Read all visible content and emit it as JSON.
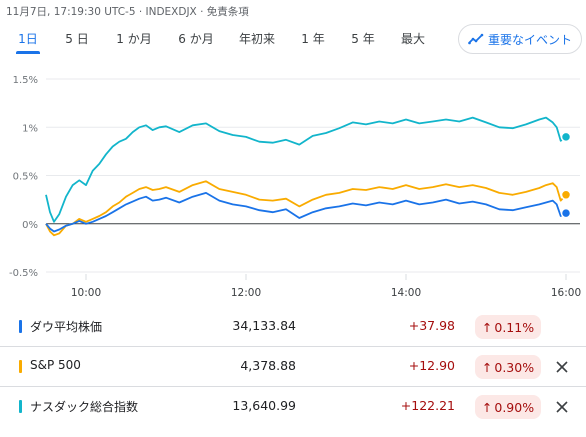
{
  "header": {
    "meta": "11月7日, 17:19:30 UTC-5 · INDEXDJX · 免責条項"
  },
  "tabs": [
    {
      "label": "1日",
      "active": true
    },
    {
      "label": "5 日",
      "active": false
    },
    {
      "label": "1 か月",
      "active": false
    },
    {
      "label": "6 か月",
      "active": false
    },
    {
      "label": "年初来",
      "active": false
    },
    {
      "label": "1 年",
      "active": false
    },
    {
      "label": "5 年",
      "active": false
    },
    {
      "label": "最大",
      "active": false
    }
  ],
  "events_button": {
    "label": "重要なイベント",
    "icon": "trending-icon"
  },
  "chart_data": {
    "type": "line",
    "ylim": [
      -0.5,
      1.5
    ],
    "y_ticks": [
      "1.5%",
      "1%",
      "0.5%",
      "0%",
      "-0.5%"
    ],
    "y_tick_values": [
      1.5,
      1.0,
      0.5,
      0.0,
      -0.5
    ],
    "x_range": [
      "09:30",
      "16:00"
    ],
    "x_ticks": [
      "10:00",
      "12:00",
      "14:00",
      "16:00"
    ],
    "grid": true,
    "series": [
      {
        "name": "ナスダック総合指数",
        "color": "#12b5cb",
        "x": [
          "09:30",
          "09:33",
          "09:36",
          "09:40",
          "09:45",
          "09:50",
          "09:55",
          "10:00",
          "10:05",
          "10:10",
          "10:15",
          "10:20",
          "10:25",
          "10:30",
          "10:35",
          "10:40",
          "10:45",
          "10:50",
          "10:55",
          "11:00",
          "11:10",
          "11:20",
          "11:30",
          "11:40",
          "11:50",
          "12:00",
          "12:10",
          "12:20",
          "12:30",
          "12:40",
          "12:50",
          "13:00",
          "13:10",
          "13:20",
          "13:30",
          "13:40",
          "13:50",
          "14:00",
          "14:10",
          "14:20",
          "14:30",
          "14:40",
          "14:50",
          "15:00",
          "15:10",
          "15:20",
          "15:30",
          "15:40",
          "15:45",
          "15:50",
          "15:53",
          "15:56",
          "16:00"
        ],
        "y": [
          0.3,
          0.12,
          0.02,
          0.1,
          0.28,
          0.4,
          0.45,
          0.4,
          0.55,
          0.62,
          0.72,
          0.8,
          0.85,
          0.88,
          0.95,
          1.0,
          1.02,
          0.97,
          1.0,
          1.01,
          0.95,
          1.02,
          1.04,
          0.96,
          0.92,
          0.9,
          0.85,
          0.84,
          0.87,
          0.82,
          0.91,
          0.94,
          0.99,
          1.05,
          1.03,
          1.06,
          1.04,
          1.08,
          1.04,
          1.06,
          1.08,
          1.06,
          1.1,
          1.05,
          1.0,
          0.99,
          1.03,
          1.08,
          1.1,
          1.05,
          1.0,
          0.86,
          0.9
        ]
      },
      {
        "name": "S&P 500",
        "color": "#f9ab00",
        "x": [
          "09:30",
          "09:33",
          "09:36",
          "09:40",
          "09:45",
          "09:50",
          "09:55",
          "10:00",
          "10:05",
          "10:10",
          "10:15",
          "10:20",
          "10:25",
          "10:30",
          "10:35",
          "10:40",
          "10:45",
          "10:50",
          "10:55",
          "11:00",
          "11:10",
          "11:20",
          "11:30",
          "11:40",
          "11:50",
          "12:00",
          "12:10",
          "12:20",
          "12:30",
          "12:40",
          "12:50",
          "13:00",
          "13:10",
          "13:20",
          "13:30",
          "13:40",
          "13:50",
          "14:00",
          "14:10",
          "14:20",
          "14:30",
          "14:40",
          "14:50",
          "15:00",
          "15:10",
          "15:20",
          "15:30",
          "15:40",
          "15:45",
          "15:50",
          "15:53",
          "15:56",
          "16:00"
        ],
        "y": [
          0.0,
          -0.08,
          -0.12,
          -0.1,
          -0.02,
          0.0,
          0.05,
          0.02,
          0.05,
          0.08,
          0.12,
          0.18,
          0.22,
          0.28,
          0.32,
          0.36,
          0.38,
          0.35,
          0.36,
          0.38,
          0.33,
          0.4,
          0.44,
          0.36,
          0.33,
          0.3,
          0.25,
          0.24,
          0.26,
          0.18,
          0.25,
          0.3,
          0.32,
          0.36,
          0.35,
          0.38,
          0.36,
          0.4,
          0.36,
          0.38,
          0.41,
          0.38,
          0.4,
          0.37,
          0.32,
          0.3,
          0.33,
          0.37,
          0.4,
          0.42,
          0.38,
          0.24,
          0.3
        ]
      },
      {
        "name": "ダウ平均株価",
        "color": "#1a73e8",
        "x": [
          "09:30",
          "09:33",
          "09:36",
          "09:40",
          "09:45",
          "09:50",
          "09:55",
          "10:00",
          "10:05",
          "10:10",
          "10:15",
          "10:20",
          "10:25",
          "10:30",
          "10:35",
          "10:40",
          "10:45",
          "10:50",
          "10:55",
          "11:00",
          "11:10",
          "11:20",
          "11:30",
          "11:40",
          "11:50",
          "12:00",
          "12:10",
          "12:20",
          "12:30",
          "12:40",
          "12:50",
          "13:00",
          "13:10",
          "13:20",
          "13:30",
          "13:40",
          "13:50",
          "14:00",
          "14:10",
          "14:20",
          "14:30",
          "14:40",
          "14:50",
          "15:00",
          "15:10",
          "15:20",
          "15:30",
          "15:40",
          "15:45",
          "15:50",
          "15:53",
          "15:56",
          "16:00"
        ],
        "y": [
          0.0,
          -0.05,
          -0.08,
          -0.06,
          -0.02,
          0.0,
          0.03,
          0.0,
          0.02,
          0.05,
          0.08,
          0.12,
          0.16,
          0.2,
          0.23,
          0.26,
          0.28,
          0.24,
          0.25,
          0.27,
          0.22,
          0.28,
          0.32,
          0.24,
          0.2,
          0.18,
          0.14,
          0.12,
          0.15,
          0.06,
          0.12,
          0.16,
          0.18,
          0.21,
          0.19,
          0.22,
          0.2,
          0.24,
          0.2,
          0.22,
          0.25,
          0.21,
          0.23,
          0.2,
          0.15,
          0.14,
          0.17,
          0.2,
          0.22,
          0.24,
          0.2,
          0.08,
          0.11
        ]
      }
    ]
  },
  "indices": [
    {
      "name": "ダウ平均株価",
      "value": "34,133.84",
      "change": "+37.98",
      "pct": "0.11%",
      "color": "#1a73e8",
      "removable": false
    },
    {
      "name": "S&P 500",
      "value": "4,378.88",
      "change": "+12.90",
      "pct": "0.30%",
      "color": "#f9ab00",
      "removable": true
    },
    {
      "name": "ナスダック総合指数",
      "value": "13,640.99",
      "change": "+122.21",
      "pct": "0.90%",
      "color": "#12b5cb",
      "removable": true
    }
  ]
}
